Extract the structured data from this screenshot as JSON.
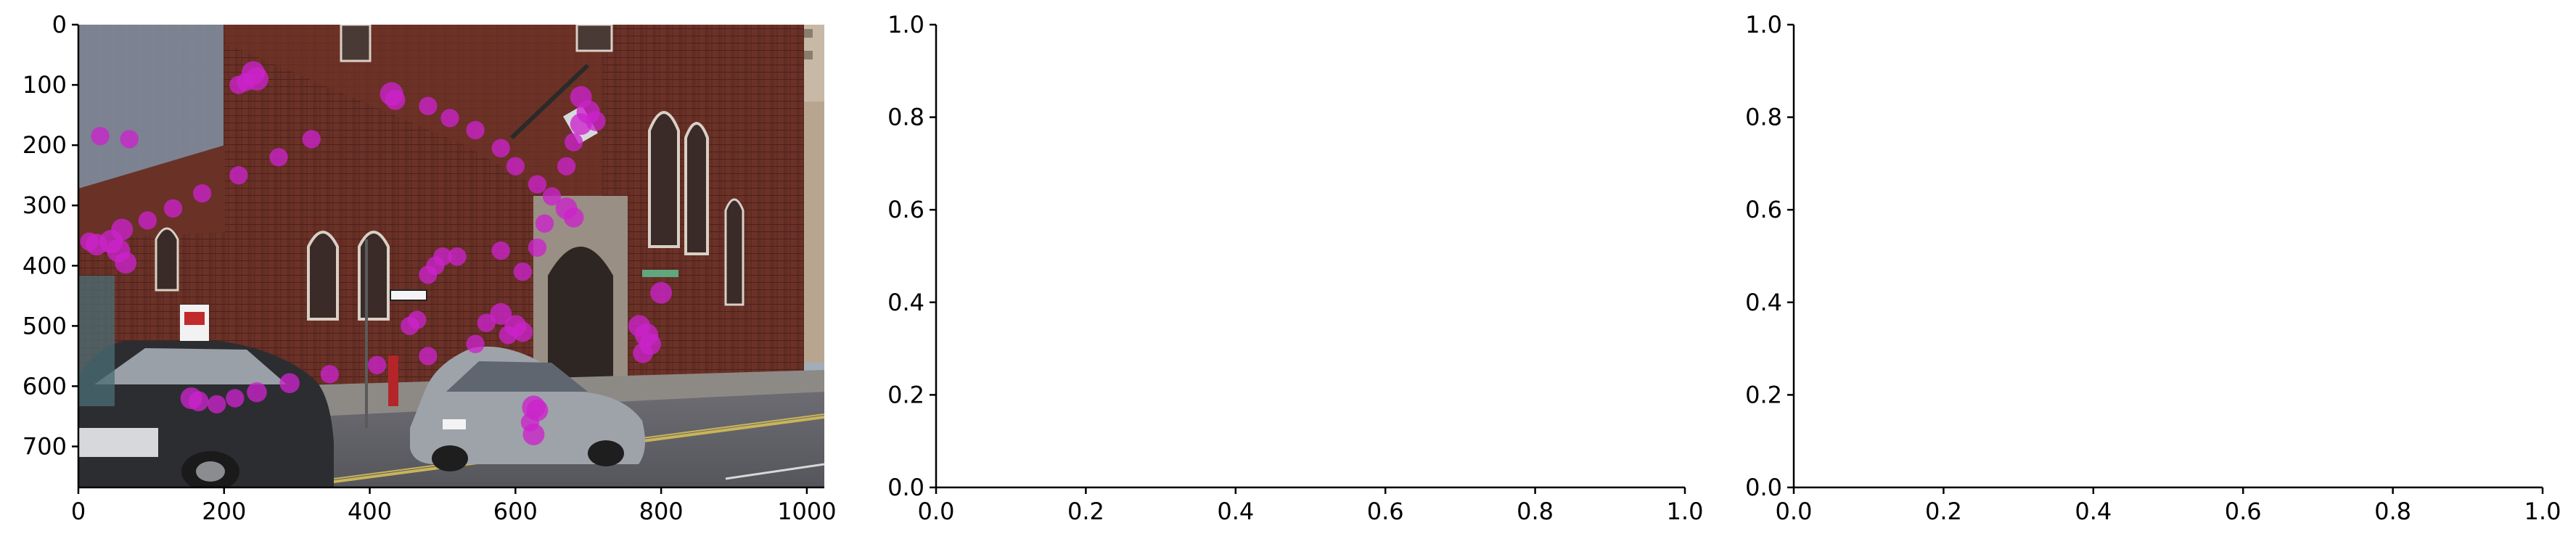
{
  "chart_data": [
    {
      "type": "scatter",
      "background": "street-scene-photo",
      "xlim": [
        0,
        1024
      ],
      "ylim": [
        768,
        0
      ],
      "xticks": [
        0,
        200,
        400,
        600,
        800,
        1000
      ],
      "yticks": [
        0,
        100,
        200,
        300,
        400,
        500,
        600,
        700
      ],
      "xtick_labels": [
        "0",
        "200",
        "400",
        "600",
        "800",
        "1000"
      ],
      "ytick_labels": [
        "0",
        "100",
        "200",
        "300",
        "400",
        "500",
        "600",
        "700"
      ],
      "marker_color": "#cc22cc",
      "grid": false,
      "points": [
        {
          "x": 240,
          "y": 80,
          "size": 14
        },
        {
          "x": 245,
          "y": 90,
          "size": 14
        },
        {
          "x": 230,
          "y": 95,
          "size": 11
        },
        {
          "x": 220,
          "y": 100,
          "size": 11
        },
        {
          "x": 430,
          "y": 115,
          "size": 14
        },
        {
          "x": 435,
          "y": 125,
          "size": 12
        },
        {
          "x": 480,
          "y": 135,
          "size": 11
        },
        {
          "x": 510,
          "y": 155,
          "size": 11
        },
        {
          "x": 545,
          "y": 175,
          "size": 11
        },
        {
          "x": 580,
          "y": 205,
          "size": 11
        },
        {
          "x": 600,
          "y": 235,
          "size": 11
        },
        {
          "x": 630,
          "y": 265,
          "size": 11
        },
        {
          "x": 690,
          "y": 120,
          "size": 13
        },
        {
          "x": 700,
          "y": 145,
          "size": 14
        },
        {
          "x": 690,
          "y": 165,
          "size": 13
        },
        {
          "x": 710,
          "y": 160,
          "size": 12
        },
        {
          "x": 680,
          "y": 195,
          "size": 11
        },
        {
          "x": 670,
          "y": 235,
          "size": 11
        },
        {
          "x": 650,
          "y": 285,
          "size": 11
        },
        {
          "x": 670,
          "y": 305,
          "size": 13
        },
        {
          "x": 680,
          "y": 320,
          "size": 12
        },
        {
          "x": 640,
          "y": 330,
          "size": 11
        },
        {
          "x": 630,
          "y": 370,
          "size": 11
        },
        {
          "x": 610,
          "y": 410,
          "size": 11
        },
        {
          "x": 580,
          "y": 375,
          "size": 11
        },
        {
          "x": 320,
          "y": 190,
          "size": 11
        },
        {
          "x": 275,
          "y": 220,
          "size": 11
        },
        {
          "x": 220,
          "y": 250,
          "size": 11
        },
        {
          "x": 170,
          "y": 280,
          "size": 11
        },
        {
          "x": 130,
          "y": 305,
          "size": 11
        },
        {
          "x": 95,
          "y": 325,
          "size": 11
        },
        {
          "x": 70,
          "y": 190,
          "size": 11
        },
        {
          "x": 30,
          "y": 185,
          "size": 11
        },
        {
          "x": 60,
          "y": 340,
          "size": 13
        },
        {
          "x": 45,
          "y": 360,
          "size": 14
        },
        {
          "x": 25,
          "y": 365,
          "size": 13
        },
        {
          "x": 55,
          "y": 375,
          "size": 14
        },
        {
          "x": 65,
          "y": 395,
          "size": 13
        },
        {
          "x": 15,
          "y": 360,
          "size": 11
        },
        {
          "x": 500,
          "y": 385,
          "size": 11
        },
        {
          "x": 520,
          "y": 385,
          "size": 11
        },
        {
          "x": 490,
          "y": 400,
          "size": 11
        },
        {
          "x": 480,
          "y": 415,
          "size": 11
        },
        {
          "x": 465,
          "y": 490,
          "size": 11
        },
        {
          "x": 455,
          "y": 500,
          "size": 11
        },
        {
          "x": 480,
          "y": 550,
          "size": 11
        },
        {
          "x": 410,
          "y": 565,
          "size": 11
        },
        {
          "x": 345,
          "y": 580,
          "size": 11
        },
        {
          "x": 580,
          "y": 480,
          "size": 13
        },
        {
          "x": 560,
          "y": 495,
          "size": 11
        },
        {
          "x": 600,
          "y": 500,
          "size": 13
        },
        {
          "x": 610,
          "y": 510,
          "size": 12
        },
        {
          "x": 590,
          "y": 515,
          "size": 11
        },
        {
          "x": 545,
          "y": 530,
          "size": 11
        },
        {
          "x": 800,
          "y": 445,
          "size": 13
        },
        {
          "x": 770,
          "y": 500,
          "size": 13
        },
        {
          "x": 780,
          "y": 515,
          "size": 14
        },
        {
          "x": 785,
          "y": 530,
          "size": 13
        },
        {
          "x": 775,
          "y": 545,
          "size": 12
        },
        {
          "x": 625,
          "y": 635,
          "size": 14
        },
        {
          "x": 630,
          "y": 640,
          "size": 13
        },
        {
          "x": 620,
          "y": 660,
          "size": 11
        },
        {
          "x": 625,
          "y": 680,
          "size": 13
        },
        {
          "x": 155,
          "y": 620,
          "size": 13
        },
        {
          "x": 165,
          "y": 625,
          "size": 12
        },
        {
          "x": 190,
          "y": 630,
          "size": 11
        },
        {
          "x": 215,
          "y": 620,
          "size": 11
        },
        {
          "x": 245,
          "y": 610,
          "size": 12
        },
        {
          "x": 290,
          "y": 595,
          "size": 12
        }
      ]
    },
    {
      "type": "scatter",
      "points": [],
      "xlim": [
        0,
        1
      ],
      "ylim": [
        0,
        1
      ],
      "xticks": [
        0,
        0.2,
        0.4,
        0.6,
        0.8,
        1.0
      ],
      "yticks": [
        0,
        0.2,
        0.4,
        0.6,
        0.8,
        1.0
      ],
      "xtick_labels": [
        "0.0",
        "0.2",
        "0.4",
        "0.6",
        "0.8",
        "1.0"
      ],
      "ytick_labels": [
        "0.0",
        "0.2",
        "0.4",
        "0.6",
        "0.8",
        "1.0"
      ],
      "grid": false
    },
    {
      "type": "scatter",
      "points": [],
      "xlim": [
        0,
        1
      ],
      "ylim": [
        0,
        1
      ],
      "xticks": [
        0,
        0.2,
        0.4,
        0.6,
        0.8,
        1.0
      ],
      "yticks": [
        0,
        0.2,
        0.4,
        0.6,
        0.8,
        1.0
      ],
      "xtick_labels": [
        "0.0",
        "0.2",
        "0.4",
        "0.6",
        "0.8",
        "1.0"
      ],
      "ytick_labels": [
        "0.0",
        "0.2",
        "0.4",
        "0.6",
        "0.8",
        "1.0"
      ],
      "grid": false
    }
  ]
}
